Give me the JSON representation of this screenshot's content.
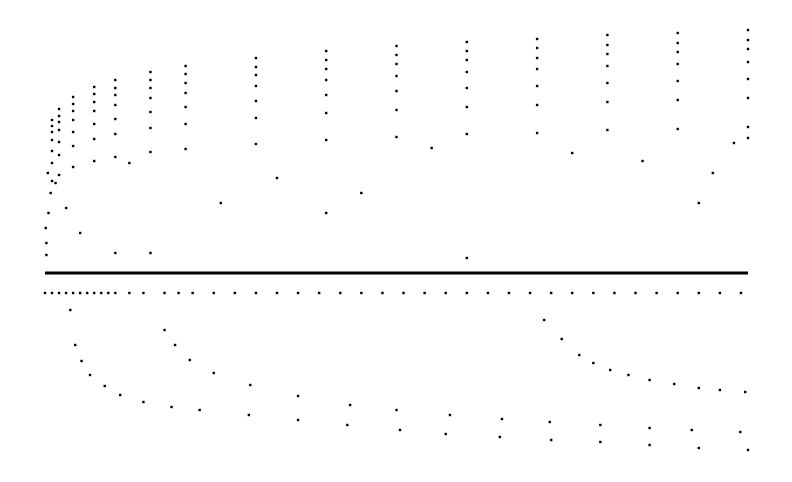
{
  "chart_data": {
    "type": "scatter",
    "xlim": [
      0,
      100
    ],
    "ylim": [
      -180,
      243
    ],
    "x": [
      1,
      2,
      4,
      7,
      10,
      15,
      20,
      30,
      40,
      50,
      60,
      70,
      80,
      90,
      100
    ],
    "series": [
      {
        "color": "#000000",
        "values": [
          153,
          164,
          176,
          186,
          193,
          201,
          207,
          215,
          222,
          227,
          231,
          234,
          238,
          240,
          243
        ]
      },
      {
        "color": "#000000",
        "values": [
          147,
          157,
          169,
          179,
          185,
          193,
          199,
          206,
          213,
          218,
          222,
          225,
          228,
          230,
          233
        ]
      },
      {
        "color": "#000000",
        "values": [
          141,
          151,
          162,
          171,
          178,
          185,
          190,
          198,
          204,
          209,
          213,
          215,
          219,
          221,
          224
        ]
      },
      {
        "color": "#000000",
        "values": [
          133,
          143,
          153,
          162,
          168,
          175,
          180,
          187,
          193,
          197,
          201,
          204,
          207,
          209,
          211
        ]
      },
      {
        "color": "#000000",
        "values": [
          122,
          131,
          141,
          149,
          154,
          161,
          166,
          172,
          178,
          182,
          185,
          187,
          190,
          192,
          194
        ]
      },
      {
        "color": "#000000",
        "values": [
          110,
          118,
          127,
          134,
          139,
          145,
          149,
          155,
          160,
          163,
          166,
          168,
          171,
          173,
          175
        ]
      },
      {
        "color": "#000000",
        "values": [
          92,
          98,
          106,
          112,
          116,
          121,
          124,
          129,
          133,
          136,
          139,
          140,
          143,
          144,
          146
        ]
      },
      {
        "color": "#000000",
        "x": [
          0.2,
          0.2,
          0.5,
          0.8,
          1.5,
          3,
          5,
          10,
          15,
          40,
          60,
          93,
          95,
          98,
          100,
          45,
          33,
          25,
          0.1,
          0.4,
          12,
          55,
          75,
          85
        ],
        "values": [
          30,
          18,
          60,
          80,
          90,
          65,
          40,
          20,
          20,
          60,
          15,
          70,
          100,
          130,
          135,
          80,
          95,
          70,
          45,
          100,
          110,
          125,
          120,
          112
        ]
      },
      {
        "color": "#000000",
        "x": [
          0,
          1,
          2,
          3,
          4,
          5,
          6,
          7,
          8,
          9,
          10,
          12,
          14,
          17,
          19,
          21,
          24,
          27,
          30,
          33,
          36,
          39,
          42,
          45,
          48,
          51,
          54,
          57,
          60,
          63,
          66,
          69,
          72,
          75,
          78,
          81,
          84,
          87,
          90,
          93,
          96,
          99
        ],
        "values": [
          -20,
          -20,
          -20,
          -20,
          -20,
          -20,
          -20,
          -20,
          -20,
          -20,
          -20,
          -20,
          -20,
          -20,
          -20,
          -20,
          -20,
          -20,
          -20,
          -20,
          -20,
          -20,
          -20,
          -20,
          -20,
          -20,
          -20,
          -20,
          -20,
          -20,
          -20,
          -20,
          -20,
          -20,
          -20,
          -20,
          -20,
          -20,
          -20,
          -20,
          -20,
          -20
        ]
      },
      {
        "color": "#000000",
        "type": "line",
        "x": [
          0,
          100
        ],
        "values": [
          0,
          0
        ]
      },
      {
        "color": "#000000",
        "x": [
          3.6,
          4.3,
          5.2,
          6.4,
          8.5,
          10.7,
          14,
          18,
          22,
          29,
          36,
          43,
          50.5,
          57,
          64.7,
          72,
          79,
          86,
          93,
          100
        ],
        "values": [
          -37,
          -72,
          -88,
          -102,
          -113,
          -122,
          -129,
          -134,
          -137,
          -142,
          -147,
          -152,
          -157,
          -161,
          -164,
          -167,
          -169,
          -172,
          -175,
          -177
        ]
      },
      {
        "color": "#000000",
        "x": [
          17,
          18.5,
          20.6,
          24,
          29.2,
          36,
          43.4,
          50,
          57.6,
          65,
          71.8,
          79,
          86,
          92,
          98.9
        ],
        "values": [
          -57,
          -72,
          -87,
          -100,
          -112,
          -123,
          -132,
          -137,
          -142,
          -146,
          -149,
          -152,
          -155,
          -157,
          -159
        ]
      },
      {
        "color": "#000000",
        "x": [
          71,
          73.5,
          76,
          78,
          80.4,
          83,
          86,
          89.5,
          93,
          96,
          99.6
        ],
        "values": [
          -47,
          -66,
          -82,
          -90,
          -97,
          -102,
          -107,
          -111,
          -115,
          -117,
          -119
        ]
      }
    ]
  }
}
